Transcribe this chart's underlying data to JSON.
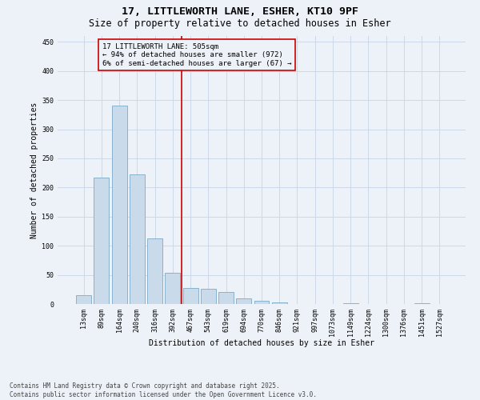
{
  "title_line1": "17, LITTLEWORTH LANE, ESHER, KT10 9PF",
  "title_line2": "Size of property relative to detached houses in Esher",
  "xlabel": "Distribution of detached houses by size in Esher",
  "ylabel": "Number of detached properties",
  "bar_labels": [
    "13sqm",
    "89sqm",
    "164sqm",
    "240sqm",
    "316sqm",
    "392sqm",
    "467sqm",
    "543sqm",
    "619sqm",
    "694sqm",
    "770sqm",
    "846sqm",
    "921sqm",
    "997sqm",
    "1073sqm",
    "1149sqm",
    "1224sqm",
    "1300sqm",
    "1376sqm",
    "1451sqm",
    "1527sqm"
  ],
  "bar_values": [
    15,
    217,
    340,
    222,
    112,
    54,
    27,
    26,
    20,
    10,
    6,
    3,
    0,
    0,
    0,
    1,
    0,
    0,
    0,
    1,
    0
  ],
  "bar_color": "#c9daea",
  "bar_edgecolor": "#7aaac8",
  "grid_color": "#ccd8e8",
  "bg_color": "#edf2f8",
  "vline_x": 6.0,
  "vline_color": "#cc0000",
  "annotation_text": "17 LITTLEWORTH LANE: 505sqm\n← 94% of detached houses are smaller (972)\n6% of semi-detached houses are larger (67) →",
  "annotation_box_color": "#cc0000",
  "ylim": [
    0,
    460
  ],
  "yticks": [
    0,
    50,
    100,
    150,
    200,
    250,
    300,
    350,
    400,
    450
  ],
  "footer_line1": "Contains HM Land Registry data © Crown copyright and database right 2025.",
  "footer_line2": "Contains public sector information licensed under the Open Government Licence v3.0.",
  "title_fontsize": 9.5,
  "subtitle_fontsize": 8.5,
  "axis_label_fontsize": 7,
  "tick_fontsize": 6,
  "annotation_fontsize": 6.5,
  "footer_fontsize": 5.5
}
